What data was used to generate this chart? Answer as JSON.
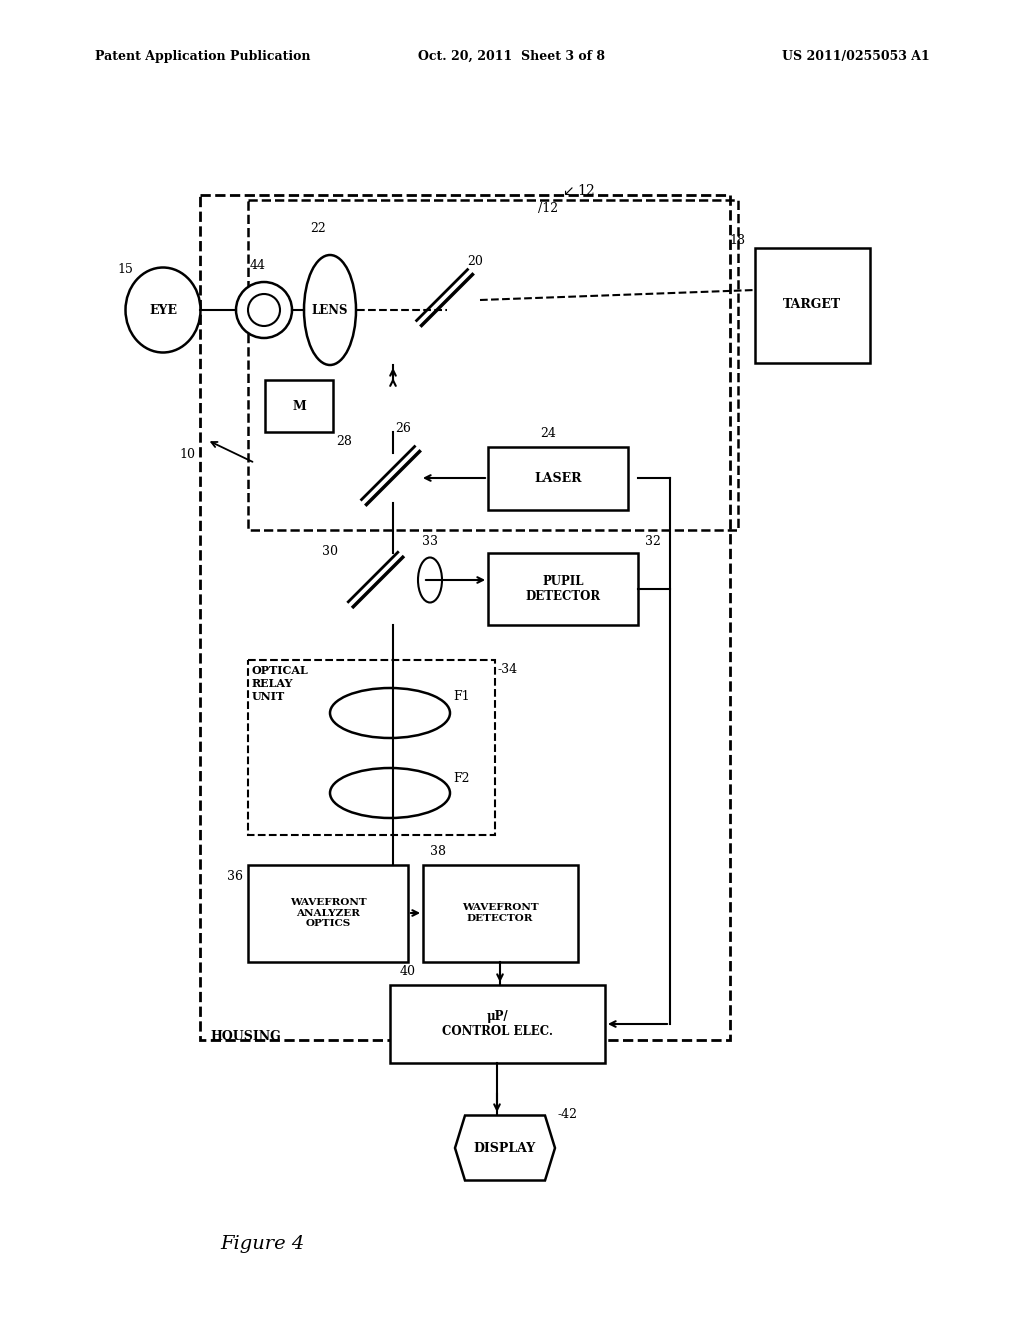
{
  "title_left": "Patent Application Publication",
  "title_mid": "Oct. 20, 2011  Sheet 3 of 8",
  "title_right": "US 2011/0255053 A1",
  "caption": "Figure 4",
  "bg_color": "#ffffff",
  "fig_width": 10.24,
  "fig_height": 13.2
}
